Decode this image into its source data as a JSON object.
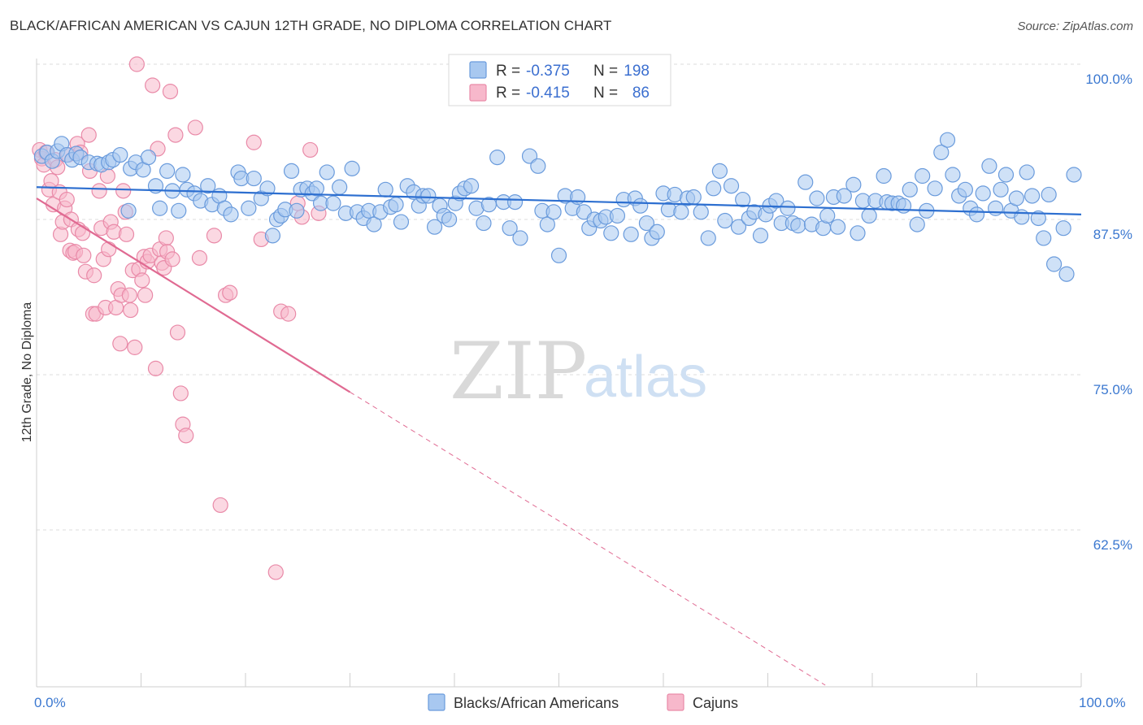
{
  "title": "BLACK/AFRICAN AMERICAN VS CAJUN 12TH GRADE, NO DIPLOMA CORRELATION CHART",
  "source": "Source: ZipAtlas.com",
  "watermark": {
    "zip": "ZIP",
    "atlas": "atlas"
  },
  "legend": {
    "r_label": "R =",
    "n_label": "N =",
    "rows": [
      {
        "r": "-0.375",
        "n": "198",
        "color": "#a8c8f0",
        "stroke": "#6a9bdc"
      },
      {
        "r": "-0.415",
        "n": "86",
        "color": "#f7b8cb",
        "stroke": "#e98aa8"
      }
    ]
  },
  "chart_data": {
    "type": "scatter",
    "title": "BLACK/AFRICAN AMERICAN VS CAJUN 12TH GRADE, NO DIPLOMA CORRELATION CHART",
    "xlabel": "",
    "ylabel": "12th Grade, No Diploma",
    "xlim": [
      0,
      100
    ],
    "ylim": [
      51.5,
      102
    ],
    "x_tick_labels": [
      "0.0%",
      "100.0%"
    ],
    "y_ticks": [
      {
        "value": 100,
        "label": "100.0%"
      },
      {
        "value": 87.5,
        "label": "87.5%"
      },
      {
        "value": 75,
        "label": "75.0%"
      },
      {
        "value": 62.5,
        "label": "62.5%"
      }
    ],
    "series": [
      {
        "name": "Blacks/African Americans",
        "color": "#a8c8f0",
        "stroke": "#6a9bdc",
        "trend": {
          "x": [
            0,
            100
          ],
          "y": [
            90.1,
            87.9
          ],
          "color": "#2d6fd0"
        },
        "points": [
          [
            0.5,
            92.6
          ],
          [
            1.0,
            92.9
          ],
          [
            1.5,
            92.2
          ],
          [
            2.0,
            93.0
          ],
          [
            2.4,
            93.6
          ],
          [
            2.9,
            92.7
          ],
          [
            3.4,
            92.3
          ],
          [
            3.8,
            92.8
          ],
          [
            4.2,
            92.5
          ],
          [
            5.0,
            92.1
          ],
          [
            5.8,
            92.0
          ],
          [
            6.2,
            91.9
          ],
          [
            6.9,
            92.1
          ],
          [
            7.3,
            92.3
          ],
          [
            8.0,
            92.7
          ],
          [
            8.8,
            88.2
          ],
          [
            9.0,
            91.6
          ],
          [
            9.5,
            92.1
          ],
          [
            10.2,
            91.5
          ],
          [
            10.7,
            92.5
          ],
          [
            11.4,
            90.2
          ],
          [
            11.8,
            88.4
          ],
          [
            12.5,
            91.4
          ],
          [
            13.0,
            89.8
          ],
          [
            13.6,
            88.2
          ],
          [
            14.0,
            91.1
          ],
          [
            14.4,
            89.9
          ],
          [
            15.1,
            89.6
          ],
          [
            15.7,
            89.0
          ],
          [
            16.4,
            90.2
          ],
          [
            16.8,
            88.7
          ],
          [
            17.5,
            89.4
          ],
          [
            18.0,
            88.4
          ],
          [
            18.6,
            87.9
          ],
          [
            19.3,
            91.3
          ],
          [
            19.6,
            90.8
          ],
          [
            20.3,
            88.4
          ],
          [
            20.8,
            90.8
          ],
          [
            21.5,
            89.2
          ],
          [
            22.1,
            90.0
          ],
          [
            22.6,
            86.2
          ],
          [
            23.0,
            87.5
          ],
          [
            23.4,
            87.8
          ],
          [
            23.8,
            88.3
          ],
          [
            24.4,
            91.4
          ],
          [
            24.9,
            88.2
          ],
          [
            25.3,
            89.9
          ],
          [
            25.9,
            90.0
          ],
          [
            26.4,
            89.6
          ],
          [
            26.8,
            90.0
          ],
          [
            27.2,
            88.8
          ],
          [
            27.8,
            91.3
          ],
          [
            28.4,
            88.8
          ],
          [
            29.0,
            90.1
          ],
          [
            29.6,
            88.0
          ],
          [
            30.2,
            91.6
          ],
          [
            30.7,
            88.1
          ],
          [
            31.3,
            87.6
          ],
          [
            31.8,
            88.2
          ],
          [
            32.3,
            87.1
          ],
          [
            32.9,
            88.1
          ],
          [
            33.4,
            89.9
          ],
          [
            33.9,
            88.5
          ],
          [
            34.4,
            88.7
          ],
          [
            34.9,
            87.3
          ],
          [
            35.5,
            90.2
          ],
          [
            36.1,
            89.7
          ],
          [
            36.6,
            88.6
          ],
          [
            37.0,
            89.4
          ],
          [
            37.5,
            89.4
          ],
          [
            38.1,
            86.9
          ],
          [
            38.6,
            88.6
          ],
          [
            39.0,
            87.8
          ],
          [
            39.5,
            87.5
          ],
          [
            40.1,
            88.8
          ],
          [
            40.5,
            89.6
          ],
          [
            41.0,
            90.0
          ],
          [
            41.6,
            90.2
          ],
          [
            42.1,
            88.4
          ],
          [
            42.8,
            87.2
          ],
          [
            43.3,
            88.7
          ],
          [
            44.1,
            92.5
          ],
          [
            44.7,
            88.9
          ],
          [
            45.3,
            86.8
          ],
          [
            45.8,
            88.9
          ],
          [
            46.3,
            86.0
          ],
          [
            47.2,
            92.6
          ],
          [
            48.0,
            91.8
          ],
          [
            48.4,
            88.2
          ],
          [
            48.9,
            87.1
          ],
          [
            49.5,
            88.1
          ],
          [
            50.0,
            84.6
          ],
          [
            50.6,
            89.4
          ],
          [
            51.3,
            88.4
          ],
          [
            51.8,
            89.3
          ],
          [
            52.4,
            88.1
          ],
          [
            52.9,
            86.8
          ],
          [
            53.4,
            87.5
          ],
          [
            54.0,
            87.4
          ],
          [
            54.5,
            87.7
          ],
          [
            55.0,
            86.4
          ],
          [
            55.6,
            87.8
          ],
          [
            56.2,
            89.1
          ],
          [
            56.9,
            86.3
          ],
          [
            57.3,
            89.2
          ],
          [
            57.8,
            88.6
          ],
          [
            58.4,
            87.2
          ],
          [
            58.9,
            86.0
          ],
          [
            59.4,
            86.5
          ],
          [
            60.0,
            89.6
          ],
          [
            60.5,
            88.3
          ],
          [
            61.1,
            89.5
          ],
          [
            61.7,
            88.1
          ],
          [
            62.3,
            89.2
          ],
          [
            62.9,
            89.3
          ],
          [
            63.6,
            88.1
          ],
          [
            64.3,
            86.0
          ],
          [
            64.8,
            90.0
          ],
          [
            65.4,
            91.4
          ],
          [
            65.9,
            87.4
          ],
          [
            66.5,
            90.2
          ],
          [
            67.2,
            86.9
          ],
          [
            67.6,
            89.1
          ],
          [
            68.2,
            87.6
          ],
          [
            68.7,
            88.1
          ],
          [
            69.3,
            86.2
          ],
          [
            69.8,
            87.9
          ],
          [
            70.2,
            88.6
          ],
          [
            70.8,
            89.0
          ],
          [
            71.3,
            87.2
          ],
          [
            71.9,
            88.4
          ],
          [
            72.4,
            87.2
          ],
          [
            72.9,
            87.0
          ],
          [
            73.6,
            90.5
          ],
          [
            74.2,
            87.1
          ],
          [
            74.7,
            89.2
          ],
          [
            75.3,
            86.8
          ],
          [
            75.7,
            87.8
          ],
          [
            76.3,
            89.3
          ],
          [
            76.7,
            86.9
          ],
          [
            77.3,
            89.4
          ],
          [
            78.2,
            90.3
          ],
          [
            78.6,
            86.4
          ],
          [
            79.1,
            89.0
          ],
          [
            79.7,
            87.8
          ],
          [
            80.3,
            89.0
          ],
          [
            81.1,
            91.0
          ],
          [
            81.4,
            88.9
          ],
          [
            81.9,
            88.8
          ],
          [
            82.5,
            88.8
          ],
          [
            83.0,
            88.6
          ],
          [
            83.6,
            89.9
          ],
          [
            84.3,
            87.1
          ],
          [
            84.8,
            91.0
          ],
          [
            85.2,
            88.2
          ],
          [
            86.0,
            90.0
          ],
          [
            86.6,
            92.9
          ],
          [
            87.2,
            93.9
          ],
          [
            87.7,
            91.1
          ],
          [
            88.3,
            89.4
          ],
          [
            88.9,
            89.9
          ],
          [
            89.4,
            88.4
          ],
          [
            90.0,
            87.9
          ],
          [
            90.6,
            89.6
          ],
          [
            91.2,
            91.8
          ],
          [
            91.8,
            88.4
          ],
          [
            92.3,
            89.9
          ],
          [
            92.8,
            91.1
          ],
          [
            93.3,
            88.2
          ],
          [
            93.8,
            89.2
          ],
          [
            94.3,
            87.7
          ],
          [
            94.8,
            91.3
          ],
          [
            95.3,
            89.4
          ],
          [
            95.9,
            87.6
          ],
          [
            96.4,
            86.0
          ],
          [
            96.9,
            89.5
          ],
          [
            97.4,
            83.9
          ],
          [
            98.3,
            86.8
          ],
          [
            98.6,
            83.1
          ],
          [
            99.3,
            91.1
          ]
        ]
      },
      {
        "name": "Cajuns",
        "color": "#f7b8cb",
        "stroke": "#e98aa8",
        "trend": {
          "x": [
            0,
            30
          ],
          "y": [
            89.2,
            73.6
          ],
          "dashed_to": [
            75.5,
            50.0
          ],
          "color": "#e06a92"
        },
        "points": [
          [
            0.3,
            93.1
          ],
          [
            0.5,
            92.4
          ],
          [
            0.7,
            91.9
          ],
          [
            0.9,
            92.9
          ],
          [
            1.2,
            89.9
          ],
          [
            1.4,
            90.6
          ],
          [
            1.6,
            88.7
          ],
          [
            1.8,
            92.3
          ],
          [
            2.0,
            91.7
          ],
          [
            2.2,
            89.7
          ],
          [
            2.3,
            86.3
          ],
          [
            2.5,
            87.3
          ],
          [
            2.7,
            88.4
          ],
          [
            2.9,
            89.1
          ],
          [
            3.0,
            92.7
          ],
          [
            3.2,
            85.0
          ],
          [
            3.3,
            87.5
          ],
          [
            3.5,
            84.8
          ],
          [
            3.7,
            84.9
          ],
          [
            3.9,
            93.6
          ],
          [
            4.0,
            86.7
          ],
          [
            4.2,
            92.9
          ],
          [
            4.4,
            86.4
          ],
          [
            4.5,
            84.6
          ],
          [
            4.7,
            83.3
          ],
          [
            5.0,
            94.3
          ],
          [
            5.1,
            91.4
          ],
          [
            5.4,
            79.9
          ],
          [
            5.5,
            83.0
          ],
          [
            5.7,
            79.9
          ],
          [
            6.0,
            89.8
          ],
          [
            6.2,
            86.8
          ],
          [
            6.4,
            84.3
          ],
          [
            6.6,
            80.4
          ],
          [
            6.8,
            91.0
          ],
          [
            6.9,
            85.1
          ],
          [
            7.1,
            87.3
          ],
          [
            7.4,
            86.5
          ],
          [
            7.6,
            80.4
          ],
          [
            7.8,
            81.9
          ],
          [
            8.0,
            77.5
          ],
          [
            8.1,
            81.4
          ],
          [
            8.3,
            89.8
          ],
          [
            8.5,
            88.1
          ],
          [
            8.6,
            86.3
          ],
          [
            8.9,
            81.4
          ],
          [
            9.0,
            80.2
          ],
          [
            9.2,
            83.4
          ],
          [
            9.4,
            77.2
          ],
          [
            9.6,
            100.0
          ],
          [
            9.8,
            83.5
          ],
          [
            10.1,
            82.6
          ],
          [
            10.3,
            84.5
          ],
          [
            10.4,
            81.4
          ],
          [
            10.6,
            84.1
          ],
          [
            10.9,
            84.6
          ],
          [
            11.1,
            98.3
          ],
          [
            11.4,
            75.5
          ],
          [
            11.6,
            93.2
          ],
          [
            11.8,
            85.1
          ],
          [
            12.0,
            84.0
          ],
          [
            12.2,
            83.6
          ],
          [
            12.4,
            86.0
          ],
          [
            12.5,
            84.9
          ],
          [
            12.8,
            97.8
          ],
          [
            13.0,
            84.3
          ],
          [
            13.3,
            94.3
          ],
          [
            13.5,
            78.4
          ],
          [
            13.8,
            73.5
          ],
          [
            14.0,
            71.0
          ],
          [
            14.3,
            70.1
          ],
          [
            15.2,
            94.9
          ],
          [
            15.6,
            84.4
          ],
          [
            17.0,
            86.2
          ],
          [
            17.6,
            64.5
          ],
          [
            18.1,
            81.4
          ],
          [
            18.5,
            81.6
          ],
          [
            20.8,
            93.7
          ],
          [
            21.5,
            85.9
          ],
          [
            22.9,
            59.1
          ],
          [
            23.4,
            80.1
          ],
          [
            24.1,
            79.9
          ],
          [
            25.0,
            88.8
          ],
          [
            25.4,
            87.7
          ],
          [
            26.2,
            93.1
          ],
          [
            27.0,
            88.0
          ]
        ]
      }
    ]
  }
}
